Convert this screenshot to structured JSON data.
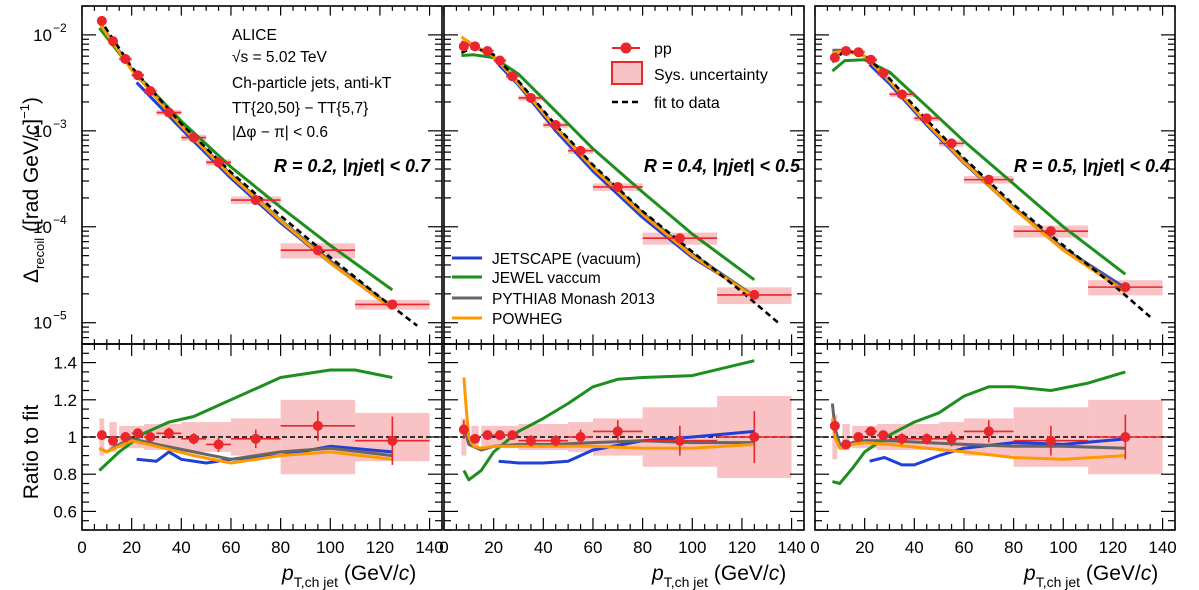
{
  "annotations": {
    "experiment": "ALICE",
    "energy": "√s = 5.02 TeV",
    "jets": "Ch-particle jets, anti-kT",
    "tt": "TT{20,50} − TT{5,7}",
    "dphi": "|Δφ − π| < 0.6"
  },
  "axes": {
    "ylabel_top": "Δrecoil ([rad GeV/c]⁻¹)",
    "ylabel_bottom": "Ratio to fit",
    "xlabel": "pT,ch jet (GeV/c)"
  },
  "legend_data": {
    "pp": "pp",
    "sys": "Sys. uncertainty",
    "fit": "fit to data"
  },
  "legend_models": [
    {
      "name": "JETSCAPE (vacuum)",
      "color": "#1f3fd6"
    },
    {
      "name": "JEWEL vaccum",
      "color": "#1e8f1e"
    },
    {
      "name": "PYTHIA8 Monash 2013",
      "color": "#666666"
    },
    {
      "name": "POWHEG",
      "color": "#ff9900"
    }
  ],
  "colors": {
    "data": "#e8262b",
    "sys_fill": "#f9c2c4",
    "fit": "#000000"
  },
  "chart_data": [
    {
      "type": "line",
      "panel_label": "R = 0.2, |ηjet| < 0.7",
      "xlim": [
        0,
        145
      ],
      "ylim_top": [
        6e-06,
        0.02
      ],
      "yscale_top": "log",
      "ylim_bottom": [
        0.5,
        1.5
      ],
      "x_ticks": [
        0,
        20,
        40,
        60,
        80,
        100,
        120,
        140
      ],
      "data_pp": {
        "x": [
          8,
          12.5,
          17.5,
          22.5,
          27.5,
          35,
          45,
          55,
          70,
          95,
          125
        ],
        "xerr": [
          1,
          1.5,
          2.5,
          2.5,
          2.5,
          5,
          5,
          5,
          10,
          15,
          15
        ],
        "y": [
          0.014,
          0.0086,
          0.0056,
          0.0038,
          0.0026,
          0.00155,
          0.00085,
          0.00047,
          0.00019,
          5.7e-05,
          1.55e-05
        ]
      },
      "fit": {
        "x": [
          7,
          20,
          40,
          60,
          80,
          100,
          120,
          135
        ],
        "y": [
          0.0148,
          0.0046,
          0.00118,
          0.00037,
          0.00013,
          4.8e-05,
          1.85e-05,
          9.3e-06
        ]
      },
      "models": [
        {
          "name": "JETSCAPE (vacuum)",
          "x": [
            22,
            40,
            60,
            80,
            100,
            125
          ],
          "y": [
            0.0032,
            0.00105,
            0.00032,
            0.00011,
            4.2e-05,
            1.4e-05
          ]
        },
        {
          "name": "JEWEL vaccum",
          "x": [
            7,
            20,
            40,
            60,
            80,
            100,
            125
          ],
          "y": [
            0.0118,
            0.0044,
            0.00126,
            0.00042,
            0.00016,
            6.4e-05,
            2.2e-05
          ]
        },
        {
          "name": "PYTHIA8 Monash 2013",
          "x": [
            7,
            20,
            40,
            60,
            80,
            100,
            125
          ],
          "y": [
            0.0135,
            0.0044,
            0.00115,
            0.00035,
            0.000117,
            4.4e-05,
            1.45e-05
          ]
        },
        {
          "name": "POWHEG",
          "x": [
            7,
            20,
            40,
            60,
            80,
            100,
            125
          ],
          "y": [
            0.0132,
            0.0043,
            0.00112,
            0.00034,
            0.000115,
            4.2e-05,
            1.4e-05
          ]
        }
      ],
      "ratio_pp": {
        "x": [
          8,
          12.5,
          17.5,
          22.5,
          27.5,
          35,
          45,
          55,
          70,
          95,
          125
        ],
        "y": [
          1.01,
          0.98,
          1.0,
          1.02,
          1.0,
          1.02,
          0.99,
          0.96,
          0.99,
          1.06,
          0.98
        ],
        "yerr": [
          0.02,
          0.02,
          0.02,
          0.02,
          0.02,
          0.03,
          0.03,
          0.04,
          0.05,
          0.08,
          0.13
        ],
        "sys": [
          0.1,
          0.08,
          0.06,
          0.06,
          0.07,
          0.07,
          0.08,
          0.08,
          0.1,
          0.2,
          0.13
        ]
      },
      "ratio_models": [
        {
          "name": "JETSCAPE (vacuum)",
          "x": [
            22,
            30,
            35,
            40,
            50,
            60,
            80,
            100,
            125
          ],
          "y": [
            0.88,
            0.87,
            0.92,
            0.88,
            0.86,
            0.88,
            0.9,
            0.95,
            0.92
          ]
        },
        {
          "name": "JEWEL vaccum",
          "x": [
            7,
            15,
            25,
            35,
            45,
            60,
            80,
            100,
            110,
            125
          ],
          "y": [
            0.82,
            0.92,
            1.02,
            1.08,
            1.11,
            1.2,
            1.32,
            1.36,
            1.36,
            1.32
          ]
        },
        {
          "name": "PYTHIA8 Monash 2013",
          "x": [
            7,
            10,
            15,
            20,
            30,
            45,
            60,
            80,
            100,
            125
          ],
          "y": [
            0.94,
            0.92,
            0.96,
            0.99,
            0.96,
            0.92,
            0.88,
            0.92,
            0.94,
            0.9
          ]
        },
        {
          "name": "POWHEG",
          "x": [
            7,
            10,
            15,
            20,
            30,
            45,
            60,
            80,
            100,
            125
          ],
          "y": [
            0.94,
            0.92,
            0.95,
            0.98,
            0.95,
            0.9,
            0.86,
            0.9,
            0.92,
            0.88
          ]
        }
      ]
    },
    {
      "type": "line",
      "panel_label": "R = 0.4, |ηjet| < 0.5",
      "xlim": [
        0,
        145
      ],
      "ylim_top": [
        6e-06,
        0.02
      ],
      "yscale_top": "log",
      "ylim_bottom": [
        0.5,
        1.5
      ],
      "x_ticks": [
        0,
        20,
        40,
        60,
        80,
        100,
        120,
        140
      ],
      "data_pp": {
        "x": [
          8,
          12.5,
          17.5,
          22.5,
          27.5,
          35,
          45,
          55,
          70,
          95,
          125
        ],
        "xerr": [
          1,
          1.5,
          2.5,
          2.5,
          2.5,
          5,
          5,
          5,
          10,
          15,
          15
        ],
        "y": [
          0.0076,
          0.0076,
          0.0068,
          0.0054,
          0.0037,
          0.0022,
          0.00115,
          0.00062,
          0.00026,
          7.6e-05,
          1.95e-05
        ]
      },
      "fit": {
        "x": [
          7,
          12,
          20,
          30,
          45,
          60,
          80,
          100,
          120,
          135
        ],
        "y": [
          0.0065,
          0.0074,
          0.0062,
          0.0033,
          0.00115,
          0.00044,
          0.000145,
          5.5e-05,
          2.1e-05,
          9.8e-06
        ]
      },
      "models": [
        {
          "name": "JETSCAPE (vacuum)",
          "x": [
            22,
            30,
            45,
            60,
            80,
            100,
            125
          ],
          "y": [
            0.0049,
            0.003,
            0.001,
            0.00038,
            0.000125,
            4.8e-05,
            1.9e-05
          ]
        },
        {
          "name": "JEWEL vaccum",
          "x": [
            7,
            12,
            20,
            30,
            45,
            60,
            80,
            100,
            125
          ],
          "y": [
            0.0061,
            0.0062,
            0.0058,
            0.0039,
            0.0016,
            0.00065,
            0.00023,
            8.4e-05,
            2.8e-05
          ]
        },
        {
          "name": "PYTHIA8 Monash 2013",
          "x": [
            7,
            12,
            20,
            30,
            45,
            60,
            80,
            100,
            125
          ],
          "y": [
            0.0085,
            0.0076,
            0.006,
            0.0032,
            0.0011,
            0.00042,
            0.00014,
            5.2e-05,
            1.9e-05
          ]
        },
        {
          "name": "POWHEG",
          "x": [
            7,
            12,
            20,
            30,
            45,
            60,
            80,
            100,
            125
          ],
          "y": [
            0.0095,
            0.0078,
            0.006,
            0.0031,
            0.00108,
            0.00041,
            0.000135,
            5e-05,
            1.85e-05
          ]
        }
      ],
      "ratio_pp": {
        "x": [
          8,
          12.5,
          17.5,
          22.5,
          27.5,
          35,
          45,
          55,
          70,
          95,
          125
        ],
        "y": [
          1.04,
          0.99,
          1.01,
          1.01,
          1.01,
          0.98,
          0.98,
          1.0,
          1.03,
          0.98,
          1.0
        ],
        "yerr": [
          0.05,
          0.02,
          0.02,
          0.02,
          0.02,
          0.03,
          0.03,
          0.04,
          0.06,
          0.08,
          0.14
        ],
        "sys": [
          0.1,
          0.06,
          0.06,
          0.06,
          0.06,
          0.07,
          0.07,
          0.08,
          0.1,
          0.16,
          0.22
        ]
      },
      "ratio_models": [
        {
          "name": "JETSCAPE (vacuum)",
          "x": [
            22,
            30,
            40,
            50,
            60,
            80,
            100,
            125
          ],
          "y": [
            0.87,
            0.86,
            0.86,
            0.87,
            0.93,
            0.98,
            1.0,
            1.03
          ]
        },
        {
          "name": "JEWEL vaccum",
          "x": [
            8,
            10,
            15,
            20,
            30,
            40,
            50,
            60,
            70,
            80,
            100,
            125
          ],
          "y": [
            0.82,
            0.77,
            0.82,
            0.92,
            1.03,
            1.1,
            1.18,
            1.27,
            1.31,
            1.32,
            1.33,
            1.41
          ]
        },
        {
          "name": "PYTHIA8 Monash 2013",
          "x": [
            8,
            10,
            15,
            20,
            30,
            45,
            60,
            80,
            100,
            125
          ],
          "y": [
            1.06,
            0.96,
            0.93,
            0.95,
            0.96,
            0.96,
            0.97,
            0.98,
            0.97,
            0.97
          ]
        },
        {
          "name": "POWHEG",
          "x": [
            8,
            9,
            10,
            12,
            15,
            20,
            30,
            45,
            60,
            80,
            100,
            125
          ],
          "y": [
            1.32,
            1.15,
            1.0,
            0.95,
            0.94,
            0.95,
            0.95,
            0.95,
            0.95,
            0.94,
            0.94,
            0.96
          ]
        }
      ]
    },
    {
      "type": "line",
      "panel_label": "R = 0.5, |ηjet| < 0.4",
      "xlim": [
        0,
        145
      ],
      "ylim_top": [
        6e-06,
        0.02
      ],
      "yscale_top": "log",
      "ylim_bottom": [
        0.5,
        1.5
      ],
      "x_ticks": [
        0,
        20,
        40,
        60,
        80,
        100,
        120,
        140
      ],
      "data_pp": {
        "x": [
          8,
          12.5,
          17.5,
          22.5,
          27.5,
          35,
          45,
          55,
          70,
          95,
          125
        ],
        "xerr": [
          1,
          1.5,
          2.5,
          2.5,
          2.5,
          5,
          5,
          5,
          10,
          15,
          15
        ],
        "y": [
          0.0058,
          0.0068,
          0.0066,
          0.0055,
          0.004,
          0.0024,
          0.00135,
          0.00074,
          0.00031,
          9e-05,
          2.35e-05
        ]
      },
      "fit": {
        "x": [
          7,
          12,
          20,
          30,
          45,
          60,
          80,
          100,
          120,
          135
        ],
        "y": [
          0.0052,
          0.0069,
          0.0062,
          0.0035,
          0.0013,
          0.00052,
          0.00017,
          6.4e-05,
          2.5e-05,
          1.15e-05
        ]
      },
      "models": [
        {
          "name": "JETSCAPE (vacuum)",
          "x": [
            22,
            30,
            45,
            60,
            80,
            100,
            125
          ],
          "y": [
            0.0049,
            0.0031,
            0.00115,
            0.00046,
            0.000155,
            6e-05,
            2.3e-05
          ]
        },
        {
          "name": "JEWEL vaccum",
          "x": [
            7,
            12,
            20,
            30,
            45,
            60,
            80,
            100,
            125
          ],
          "y": [
            0.0042,
            0.0054,
            0.0055,
            0.0041,
            0.0018,
            0.00078,
            0.00028,
            0.0001,
            3.2e-05
          ]
        },
        {
          "name": "PYTHIA8 Monash 2013",
          "x": [
            7,
            12,
            20,
            30,
            45,
            60,
            80,
            100,
            125
          ],
          "y": [
            0.0069,
            0.0069,
            0.006,
            0.0033,
            0.0012,
            0.00049,
            0.00016,
            6e-05,
            2.2e-05
          ]
        },
        {
          "name": "POWHEG",
          "x": [
            7,
            12,
            20,
            30,
            45,
            60,
            80,
            100,
            125
          ],
          "y": [
            0.0065,
            0.0068,
            0.006,
            0.0033,
            0.0012,
            0.00047,
            0.000155,
            5.7e-05,
            2.1e-05
          ]
        }
      ],
      "ratio_pp": {
        "x": [
          8,
          12.5,
          17.5,
          22.5,
          27.5,
          35,
          45,
          55,
          70,
          95,
          125
        ],
        "y": [
          1.06,
          0.96,
          1.0,
          1.03,
          1.01,
          0.99,
          0.99,
          0.99,
          1.03,
          0.98,
          1.0
        ],
        "yerr": [
          0.04,
          0.02,
          0.02,
          0.02,
          0.02,
          0.03,
          0.03,
          0.04,
          0.06,
          0.08,
          0.12
        ],
        "sys": [
          0.12,
          0.07,
          0.06,
          0.06,
          0.07,
          0.07,
          0.07,
          0.08,
          0.1,
          0.16,
          0.2
        ]
      },
      "ratio_models": [
        {
          "name": "JETSCAPE (vacuum)",
          "x": [
            22,
            28,
            35,
            40,
            50,
            60,
            80,
            100,
            125
          ],
          "y": [
            0.87,
            0.89,
            0.85,
            0.85,
            0.9,
            0.94,
            0.97,
            0.96,
            0.99
          ]
        },
        {
          "name": "JEWEL vaccum",
          "x": [
            7,
            10,
            15,
            20,
            30,
            40,
            50,
            60,
            70,
            80,
            95,
            110,
            125
          ],
          "y": [
            0.76,
            0.75,
            0.83,
            0.92,
            1.01,
            1.08,
            1.13,
            1.22,
            1.27,
            1.27,
            1.25,
            1.29,
            1.35
          ]
        },
        {
          "name": "PYTHIA8 Monash 2013",
          "x": [
            7,
            8,
            10,
            12,
            15,
            20,
            30,
            45,
            60,
            80,
            100,
            125
          ],
          "y": [
            1.18,
            1.05,
            0.96,
            0.95,
            0.97,
            0.98,
            0.98,
            0.97,
            0.96,
            0.95,
            0.95,
            0.94
          ]
        },
        {
          "name": "POWHEG",
          "x": [
            7,
            8,
            10,
            12,
            15,
            20,
            30,
            45,
            60,
            80,
            100,
            125
          ],
          "y": [
            1.1,
            1.0,
            0.94,
            0.94,
            0.96,
            0.97,
            0.96,
            0.94,
            0.92,
            0.89,
            0.88,
            0.9
          ]
        }
      ]
    }
  ]
}
